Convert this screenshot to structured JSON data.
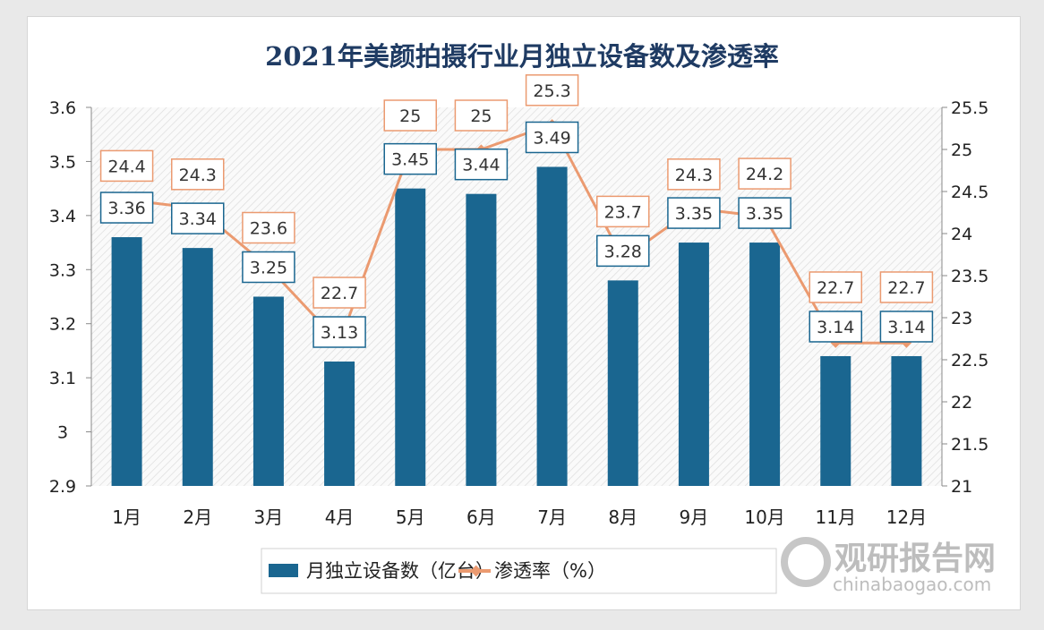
{
  "chart_data": {
    "type": "bar+line",
    "title": "2021年美颜拍摄行业月独立设备数及渗透率",
    "categories": [
      "1月",
      "2月",
      "3月",
      "4月",
      "5月",
      "6月",
      "7月",
      "8月",
      "9月",
      "10月",
      "11月",
      "12月"
    ],
    "series": [
      {
        "name": "月独立设备数（亿台）",
        "type": "bar",
        "axis": "left",
        "color": "#1a6690",
        "values": [
          3.36,
          3.34,
          3.25,
          3.13,
          3.45,
          3.44,
          3.49,
          3.28,
          3.35,
          3.35,
          3.14,
          3.14
        ]
      },
      {
        "name": "渗透率（%）",
        "type": "line",
        "axis": "right",
        "color": "#eb9a70",
        "values": [
          24.4,
          24.3,
          23.6,
          22.7,
          25,
          25,
          25.3,
          23.7,
          24.3,
          24.2,
          22.7,
          22.7
        ]
      }
    ],
    "y_left": {
      "range": [
        2.9,
        3.6
      ],
      "ticks": [
        "2.9",
        "3",
        "3.1",
        "3.2",
        "3.3",
        "3.4",
        "3.5",
        "3.6"
      ]
    },
    "y_right": {
      "range": [
        21,
        25.5
      ],
      "ticks": [
        "21",
        "21.5",
        "22",
        "22.5",
        "23",
        "23.5",
        "24",
        "24.5",
        "25",
        "25.5"
      ]
    },
    "grid": false,
    "legend_position": "bottom"
  },
  "watermark": {
    "text": "观研报告网",
    "url_text": "chinabaogao.com"
  }
}
